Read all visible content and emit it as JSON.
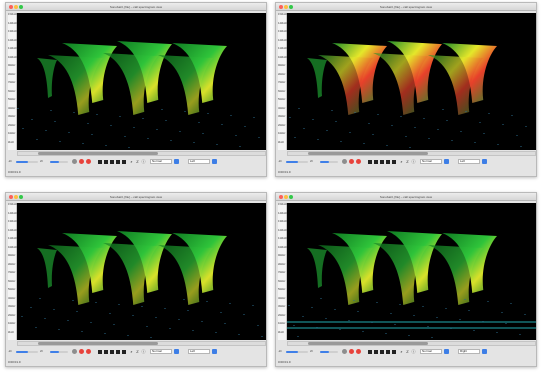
{
  "windows": [
    {
      "title": "Sonobat3, [file] – call spectrogram view",
      "status": "0:00:01.0",
      "toolbar": {
        "gain_left": "-20",
        "gain_right": "20",
        "mode_label": "Normal",
        "channel_label": "Left",
        "extra_label": ""
      },
      "palette": "green"
    },
    {
      "title": "Sonobat3, [file] – call spectrogram view",
      "status": "0:00:01.0",
      "toolbar": {
        "gain_left": "-20",
        "gain_right": "20",
        "mode_label": "Normal",
        "channel_label": "Left",
        "extra_label": ""
      },
      "palette": "hot"
    },
    {
      "title": "Sonobat3, [file] – call spectrogram view",
      "status": "0:00:01.0",
      "toolbar": {
        "gain_left": "-20",
        "gain_right": "20",
        "mode_label": "Normal",
        "channel_label": "Left",
        "extra_label": ""
      },
      "palette": "green"
    },
    {
      "title": "Sonobat3, [file] – call spectrogram view",
      "status": "0:00:01.0",
      "toolbar": {
        "gain_left": "-20",
        "gain_right": "20",
        "mode_label": "Normal",
        "channel_label": "Right",
        "extra_label": ""
      },
      "palette": "green-noise"
    }
  ],
  "frequency_ticks": [
    "150kHz",
    "140kHz",
    "130kHz",
    "120kHz",
    "110kHz",
    "100kHz",
    "90kHz",
    "80kHz",
    "70kHz",
    "60kHz",
    "50kHz",
    "40kHz",
    "30kHz",
    "20kHz",
    "10kHz",
    "0kHz"
  ],
  "colors": {
    "spectrogram_bg": "#000000",
    "call_green": "#1fbf3a",
    "call_yellow": "#e5e72a",
    "call_red": "#e8402a",
    "accent_blue": "#3d7ee6",
    "record_red": "#e8423b"
  }
}
